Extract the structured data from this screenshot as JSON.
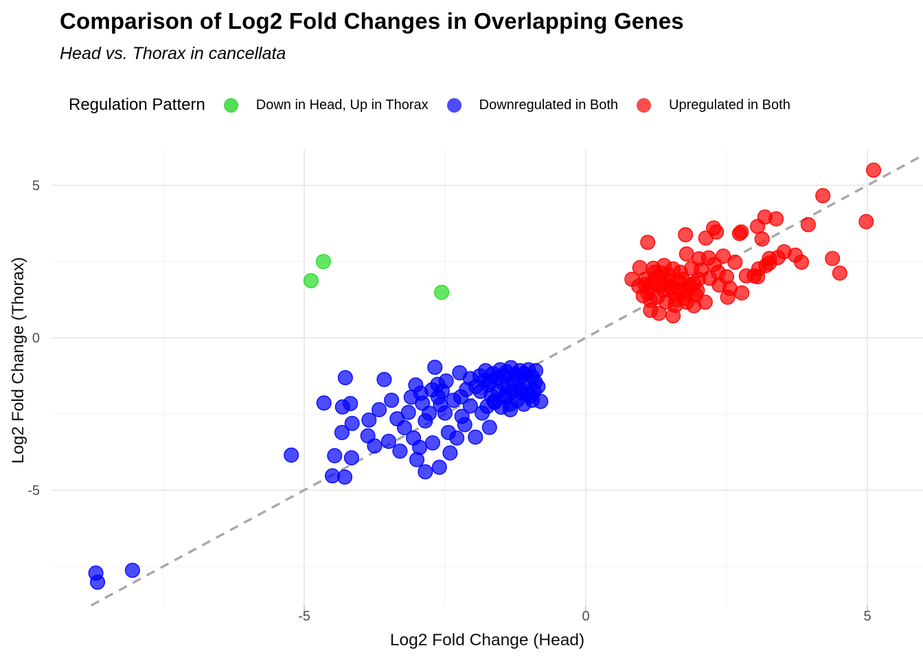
{
  "title": "Comparison of Log2 Fold Changes in Overlapping Genes",
  "subtitle": "Head vs. Thorax in cancellata",
  "legend": {
    "title": "Regulation Pattern",
    "position": "top",
    "items": [
      {
        "label": "Down in Head, Up in Thorax",
        "key_color": "#4fe14f"
      },
      {
        "label": "Downregulated in Both",
        "key_color": "#4d4dff"
      },
      {
        "label": "Upregulated in Both",
        "key_color": "#ff4d4d"
      }
    ]
  },
  "chart_data": {
    "type": "scatter",
    "title": "Comparison of Log2 Fold Changes in Overlapping Genes",
    "subtitle": "Head vs. Thorax in cancellata",
    "xlabel": "Log2 Fold Change (Head)",
    "ylabel": "Log2 Fold Change (Thorax)",
    "xlim": [
      -9.5,
      6.0
    ],
    "ylim": [
      -8.8,
      6.2
    ],
    "x_ticks": [
      -5,
      0,
      5
    ],
    "x_tick_labels": [
      "-5",
      "0",
      "5"
    ],
    "y_ticks": [
      5,
      0,
      -5
    ],
    "y_tick_labels": [
      "5",
      "0",
      "-5"
    ],
    "x_minor_ticks": [
      -7.5,
      -2.5,
      2.5
    ],
    "y_minor_ticks": [
      2.5,
      -2.5,
      -7.5
    ],
    "grid": true,
    "legend_position": "top",
    "point_opacity": 0.7,
    "point_radius_px": 10.3,
    "reference_line": {
      "type": "identity y=x",
      "style": "dashed",
      "color": "#a8a8a8"
    },
    "series": [
      {
        "name": "Down in Head, Up in Thorax",
        "color": "#22dd22",
        "points": [
          [
            -4.88,
            1.87
          ],
          [
            -4.66,
            2.5
          ],
          [
            -2.56,
            1.49
          ]
        ]
      },
      {
        "name": "Downregulated in Both",
        "color": "#0000ff",
        "points": [
          [
            -8.7,
            -7.72
          ],
          [
            -8.67,
            -8.02
          ],
          [
            -8.05,
            -7.63
          ],
          [
            -5.23,
            -3.85
          ],
          [
            -4.65,
            -2.14
          ],
          [
            -4.46,
            -3.87
          ],
          [
            -4.5,
            -4.53
          ],
          [
            -4.28,
            -4.57
          ],
          [
            -4.32,
            -2.27
          ],
          [
            -4.18,
            -2.16
          ],
          [
            -4.33,
            -3.11
          ],
          [
            -4.16,
            -3.94
          ],
          [
            -4.15,
            -2.81
          ],
          [
            -3.85,
            -2.7
          ],
          [
            -3.87,
            -3.22
          ],
          [
            -3.58,
            -1.37
          ],
          [
            -3.67,
            -2.36
          ],
          [
            -3.35,
            -2.66
          ],
          [
            -3.22,
            -2.95
          ],
          [
            -3.02,
            -1.55
          ],
          [
            -2.93,
            -1.82
          ],
          [
            -2.85,
            -2.73
          ],
          [
            -3.06,
            -3.29
          ],
          [
            -3.0,
            -4.0
          ],
          [
            -2.68,
            -0.97
          ],
          [
            -2.73,
            -1.71
          ],
          [
            -2.63,
            -1.53
          ],
          [
            -2.48,
            -1.42
          ],
          [
            -2.5,
            -2.47
          ],
          [
            -2.44,
            -3.11
          ],
          [
            -2.41,
            -3.78
          ],
          [
            -2.24,
            -1.15
          ],
          [
            -2.22,
            -1.94
          ],
          [
            -2.2,
            -2.58
          ],
          [
            -2.05,
            -1.34
          ],
          [
            -2.05,
            -2.24
          ],
          [
            -1.87,
            -1.76
          ],
          [
            -1.84,
            -2.47
          ],
          [
            -1.78,
            -1.08
          ],
          [
            -1.7,
            -1.42
          ],
          [
            -1.63,
            -2.09
          ],
          [
            -1.71,
            -2.94
          ],
          [
            -2.29,
            -3.29
          ],
          [
            -1.96,
            -3.26
          ],
          [
            -1.46,
            -1.24
          ],
          [
            -1.44,
            -1.91
          ],
          [
            -1.34,
            -2.36
          ],
          [
            -1.28,
            -1.53
          ],
          [
            -1.17,
            -1.08
          ],
          [
            -1.16,
            -1.8
          ],
          [
            -1.05,
            -1.42
          ],
          [
            -0.98,
            -1.91
          ],
          [
            -0.89,
            -1.08
          ],
          [
            -0.85,
            -1.6
          ],
          [
            -0.8,
            -2.09
          ],
          [
            -4.27,
            -1.31
          ],
          [
            -1.52,
            -1.05
          ],
          [
            -1.41,
            -1.12
          ],
          [
            -1.33,
            -0.98
          ],
          [
            -1.25,
            -1.2
          ],
          [
            -1.18,
            -1.35
          ],
          [
            -1.1,
            -1.18
          ],
          [
            -1.02,
            -1.05
          ],
          [
            -0.95,
            -1.28
          ],
          [
            -0.9,
            -1.45
          ],
          [
            -1.58,
            -1.32
          ],
          [
            -1.65,
            -1.18
          ],
          [
            -1.73,
            -1.55
          ],
          [
            -1.8,
            -1.4
          ],
          [
            -1.88,
            -1.25
          ],
          [
            -1.95,
            -1.6
          ],
          [
            -1.48,
            -1.48
          ],
          [
            -1.38,
            -1.62
          ],
          [
            -1.28,
            -1.75
          ],
          [
            -1.15,
            -1.68
          ],
          [
            -1.05,
            -1.85
          ],
          [
            -0.92,
            -1.75
          ],
          [
            -1.55,
            -1.78
          ],
          [
            -1.68,
            -1.9
          ],
          [
            -1.42,
            -1.95
          ],
          [
            -1.22,
            -2.05
          ],
          [
            -1.1,
            -2.18
          ],
          [
            -0.95,
            -2.05
          ],
          [
            -1.62,
            -2.12
          ],
          [
            -1.75,
            -2.25
          ],
          [
            -1.5,
            -2.28
          ],
          [
            -1.35,
            -2.18
          ],
          [
            -2.12,
            -1.7
          ],
          [
            -2.35,
            -2.05
          ],
          [
            -2.58,
            -2.2
          ],
          [
            -2.15,
            -2.85
          ],
          [
            -2.62,
            -1.95
          ],
          [
            -2.9,
            -2.15
          ],
          [
            -3.15,
            -2.45
          ],
          [
            -2.78,
            -2.48
          ],
          [
            -3.45,
            -2.05
          ],
          [
            -3.1,
            -1.95
          ],
          [
            -2.55,
            -1.75
          ],
          [
            -3.75,
            -3.55
          ],
          [
            -3.5,
            -3.4
          ],
          [
            -2.95,
            -3.6
          ],
          [
            -2.72,
            -3.45
          ],
          [
            -3.3,
            -3.72
          ],
          [
            -2.6,
            -4.25
          ],
          [
            -2.85,
            -4.4
          ]
        ]
      },
      {
        "name": "Upregulated in Both",
        "color": "#ff0000",
        "points": [
          [
            5.11,
            5.5
          ],
          [
            4.98,
            3.81
          ],
          [
            4.21,
            4.66
          ],
          [
            4.51,
            2.12
          ],
          [
            4.38,
            2.6
          ],
          [
            3.95,
            3.71
          ],
          [
            3.83,
            2.48
          ],
          [
            3.72,
            2.71
          ],
          [
            3.52,
            2.82
          ],
          [
            3.41,
            2.63
          ],
          [
            3.38,
            3.9
          ],
          [
            3.26,
            2.45
          ],
          [
            3.26,
            2.6
          ],
          [
            3.18,
            3.96
          ],
          [
            3.13,
            3.24
          ],
          [
            3.07,
            2.26
          ],
          [
            3.2,
            2.37
          ],
          [
            3.05,
            3.65
          ],
          [
            2.99,
            2.03
          ],
          [
            2.76,
            3.47
          ],
          [
            2.73,
            3.42
          ],
          [
            2.32,
            3.47
          ],
          [
            2.27,
            3.6
          ],
          [
            2.13,
            3.27
          ],
          [
            1.77,
            3.38
          ],
          [
            1.1,
            3.13
          ],
          [
            2.28,
            2.41
          ],
          [
            2.44,
            2.68
          ],
          [
            2.65,
            2.48
          ],
          [
            2.85,
            2.03
          ],
          [
            3.05,
            2.0
          ],
          [
            2.37,
            1.73
          ],
          [
            2.56,
            1.62
          ],
          [
            2.77,
            1.47
          ],
          [
            2.52,
            1.33
          ],
          [
            2.01,
            2.59
          ],
          [
            1.79,
            2.75
          ],
          [
            1.39,
            2.37
          ],
          [
            1.55,
            2.26
          ],
          [
            1.22,
            2.15
          ],
          [
            1.06,
            1.92
          ],
          [
            0.94,
            1.69
          ],
          [
            1.1,
            1.47
          ],
          [
            1.27,
            1.33
          ],
          [
            1.43,
            1.17
          ],
          [
            1.59,
            1.06
          ],
          [
            1.79,
            1.17
          ],
          [
            1.95,
            1.4
          ],
          [
            2.12,
            1.17
          ],
          [
            1.39,
            1.73
          ],
          [
            1.63,
            1.85
          ],
          [
            1.83,
            1.73
          ],
          [
            2.0,
            1.92
          ],
          [
            0.82,
            1.92
          ],
          [
            0.96,
            2.3
          ],
          [
            1.3,
            0.8
          ],
          [
            1.55,
            0.72
          ],
          [
            1.15,
            0.9
          ],
          [
            1.05,
            1.75
          ],
          [
            1.12,
            1.62
          ],
          [
            1.18,
            1.8
          ],
          [
            1.25,
            1.95
          ],
          [
            1.32,
            1.7
          ],
          [
            1.38,
            1.55
          ],
          [
            1.45,
            1.88
          ],
          [
            1.52,
            1.65
          ],
          [
            1.58,
            1.45
          ],
          [
            1.65,
            1.58
          ],
          [
            1.72,
            1.92
          ],
          [
            1.78,
            1.5
          ],
          [
            1.85,
            1.62
          ],
          [
            1.92,
            1.78
          ],
          [
            1.98,
            1.55
          ],
          [
            1.48,
            2.05
          ],
          [
            1.35,
            2.12
          ],
          [
            1.2,
            2.28
          ],
          [
            1.68,
            2.15
          ],
          [
            1.88,
            2.28
          ],
          [
            2.05,
            2.22
          ],
          [
            1.02,
            1.38
          ],
          [
            1.15,
            1.22
          ],
          [
            1.6,
            1.25
          ],
          [
            1.75,
            1.3
          ],
          [
            1.92,
            1.05
          ],
          [
            2.2,
            1.95
          ],
          [
            2.35,
            2.15
          ],
          [
            2.5,
            2.0
          ],
          [
            2.18,
            2.62
          ]
        ]
      }
    ]
  }
}
